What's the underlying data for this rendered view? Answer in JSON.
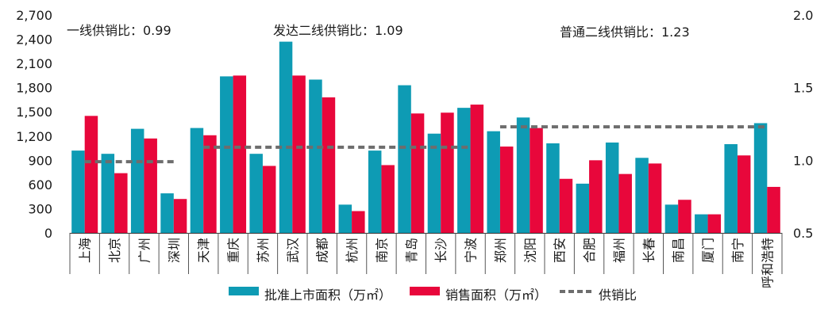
{
  "chart_data": {
    "type": "bar",
    "categories": [
      "上海",
      "北京",
      "广州",
      "深圳",
      "天津",
      "重庆",
      "苏州",
      "武汉",
      "成都",
      "杭州",
      "南京",
      "青岛",
      "长沙",
      "宁波",
      "郑州",
      "沈阳",
      "西安",
      "合肥",
      "福州",
      "长春",
      "南昌",
      "厦门",
      "南宁",
      "呼和浩特"
    ],
    "series": [
      {
        "name": "批准上市面积（万㎡）",
        "color": "#0e9bb4",
        "axis": "left",
        "values": [
          1020,
          980,
          1290,
          490,
          1300,
          1940,
          980,
          2370,
          1900,
          350,
          1020,
          1830,
          1230,
          1550,
          1260,
          1430,
          1110,
          610,
          1120,
          930,
          350,
          230,
          1100,
          1360
        ]
      },
      {
        "name": "销售面积（万㎡）",
        "color": "#e8073b",
        "axis": "left",
        "values": [
          1450,
          740,
          1170,
          420,
          1210,
          1950,
          830,
          1950,
          1680,
          270,
          840,
          1480,
          1490,
          1590,
          1070,
          1300,
          670,
          900,
          730,
          860,
          410,
          230,
          960,
          570
        ]
      },
      {
        "name": "供销比",
        "color": "#6d6d6d",
        "axis": "right",
        "type": "dashed-line",
        "segments": [
          {
            "from": "上海",
            "to": "深圳",
            "value": 0.99
          },
          {
            "from": "天津",
            "to": "宁波",
            "value": 1.09
          },
          {
            "from": "郑州",
            "to": "呼和浩特",
            "value": 1.23
          }
        ]
      }
    ],
    "y_left": {
      "ylim": [
        0,
        2700
      ],
      "ticks": [
        "0",
        "300",
        "600",
        "900",
        "1,200",
        "1,500",
        "1,800",
        "2,100",
        "2,400",
        "2,700"
      ]
    },
    "y_right": {
      "ylim": [
        0.5,
        2.0
      ],
      "ticks": [
        "0.5",
        "1.0",
        "1.5",
        "2.0"
      ]
    },
    "annotations": [
      "一线供销比：0.99",
      "发达二线供销比：1.09",
      "普通二线供销比：1.23"
    ],
    "legend": {
      "position": "bottom",
      "entries": [
        "批准上市面积（万㎡）",
        "销售面积（万㎡）",
        "供销比"
      ]
    },
    "grid": false
  }
}
